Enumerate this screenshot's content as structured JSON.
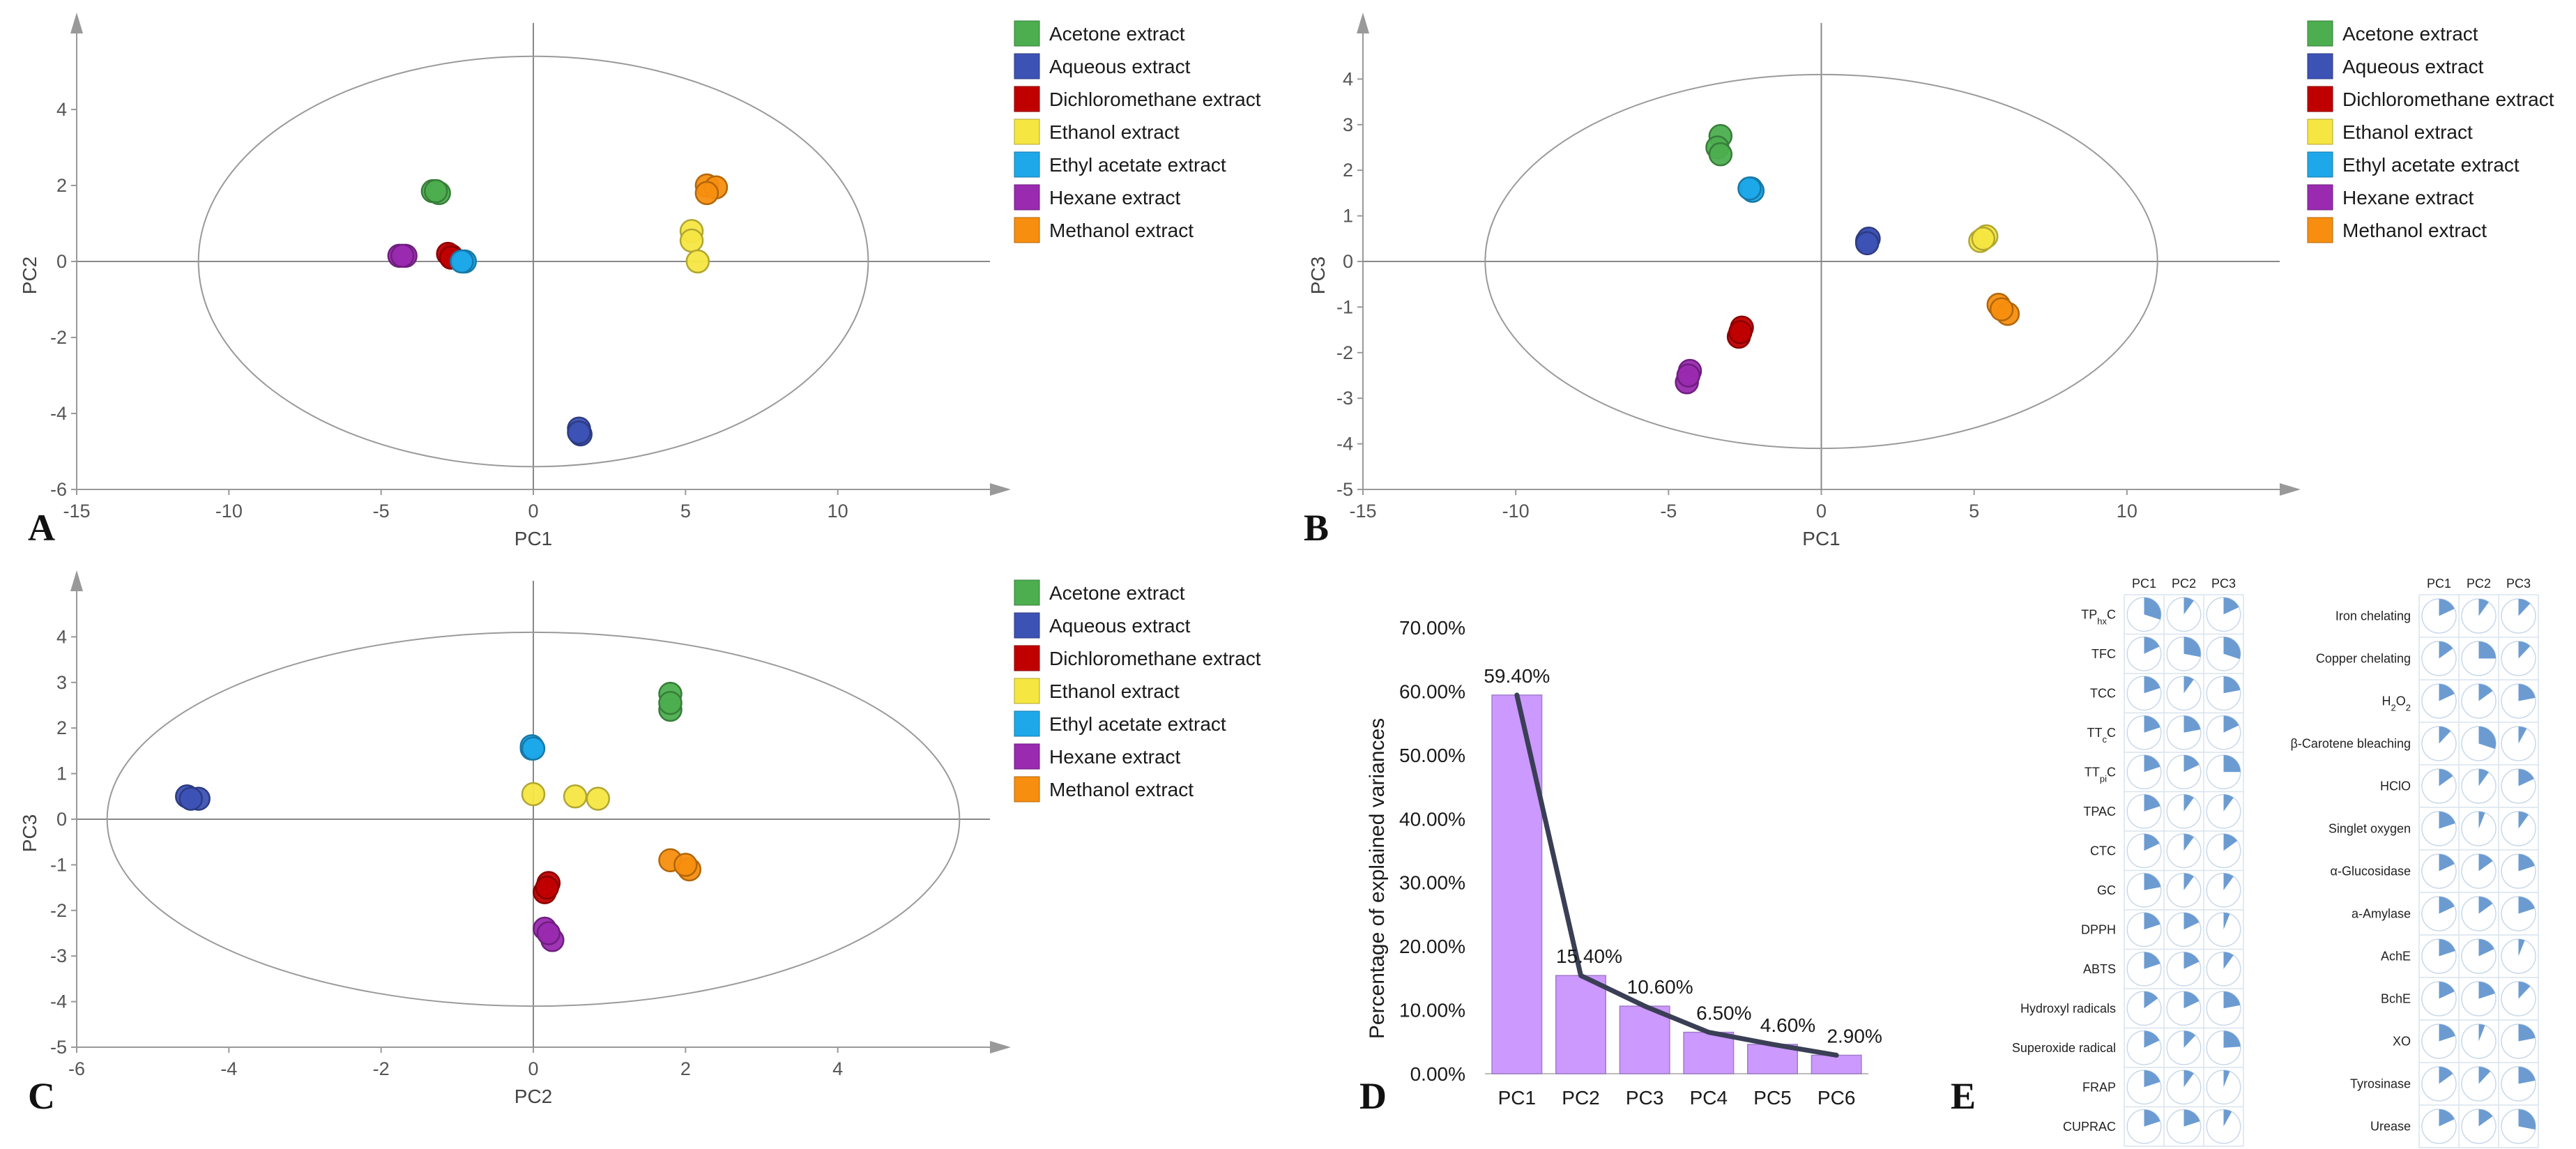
{
  "groups": [
    {
      "name": "Acetone extract",
      "color": "#4cae4f"
    },
    {
      "name": "Aqueous extract",
      "color": "#3d52b5"
    },
    {
      "name": "Dichloromethane extract",
      "color": "#c00000"
    },
    {
      "name": "Ethanol extract",
      "color": "#f5e642"
    },
    {
      "name": "Ethyl acetate extract",
      "color": "#1ea8ea"
    },
    {
      "name": "Hexane extract",
      "color": "#9a2ab0"
    },
    {
      "name": "Methanol extract",
      "color": "#f78e0f"
    }
  ],
  "chart_data": [
    {
      "panel": "A",
      "type": "scatter",
      "xlabel": "PC1",
      "ylabel": "PC2",
      "xlim": [
        -15,
        15
      ],
      "ylim": [
        -6,
        6
      ],
      "xticks": [
        -15,
        -10,
        -5,
        0,
        5,
        10
      ],
      "yticks": [
        -6,
        -4,
        -2,
        0,
        2,
        4
      ],
      "ellipse": {
        "rx": 11,
        "ry": 5.4
      },
      "points": [
        {
          "g": 0,
          "x": -3.3,
          "y": 1.85
        },
        {
          "g": 0,
          "x": -3.1,
          "y": 1.8
        },
        {
          "g": 0,
          "x": -3.2,
          "y": 1.85
        },
        {
          "g": 1,
          "x": 1.5,
          "y": -4.4
        },
        {
          "g": 1,
          "x": 1.55,
          "y": -4.55
        },
        {
          "g": 1,
          "x": 1.5,
          "y": -4.5
        },
        {
          "g": 2,
          "x": -2.7,
          "y": 0.15
        },
        {
          "g": 2,
          "x": -2.8,
          "y": 0.2
        },
        {
          "g": 2,
          "x": -2.7,
          "y": 0.1
        },
        {
          "g": 3,
          "x": 5.2,
          "y": 0.8
        },
        {
          "g": 3,
          "x": 5.2,
          "y": 0.55
        },
        {
          "g": 3,
          "x": 5.4,
          "y": 0.0
        },
        {
          "g": 4,
          "x": -2.3,
          "y": 0.0
        },
        {
          "g": 4,
          "x": -2.25,
          "y": 0.0
        },
        {
          "g": 4,
          "x": -2.35,
          "y": 0.0
        },
        {
          "g": 5,
          "x": -4.4,
          "y": 0.15
        },
        {
          "g": 5,
          "x": -4.2,
          "y": 0.15
        },
        {
          "g": 5,
          "x": -4.3,
          "y": 0.15
        },
        {
          "g": 6,
          "x": 5.7,
          "y": 2.0
        },
        {
          "g": 6,
          "x": 6.0,
          "y": 1.95
        },
        {
          "g": 6,
          "x": 5.7,
          "y": 1.8
        }
      ]
    },
    {
      "panel": "B",
      "type": "scatter",
      "xlabel": "PC1",
      "ylabel": "PC3",
      "xlim": [
        -15,
        15
      ],
      "ylim": [
        -5,
        5
      ],
      "xticks": [
        -15,
        -10,
        -5,
        0,
        5,
        10
      ],
      "yticks": [
        -5,
        -4,
        -3,
        -2,
        -1,
        0,
        1,
        2,
        3,
        4
      ],
      "ellipse": {
        "rx": 11,
        "ry": 4.1
      },
      "points": [
        {
          "g": 0,
          "x": -3.3,
          "y": 2.75
        },
        {
          "g": 0,
          "x": -3.4,
          "y": 2.5
        },
        {
          "g": 0,
          "x": -3.3,
          "y": 2.35
        },
        {
          "g": 1,
          "x": 1.5,
          "y": 0.45
        },
        {
          "g": 1,
          "x": 1.55,
          "y": 0.5
        },
        {
          "g": 1,
          "x": 1.5,
          "y": 0.4
        },
        {
          "g": 2,
          "x": -2.6,
          "y": -1.45
        },
        {
          "g": 2,
          "x": -2.7,
          "y": -1.65
        },
        {
          "g": 2,
          "x": -2.65,
          "y": -1.55
        },
        {
          "g": 3,
          "x": 5.2,
          "y": 0.45
        },
        {
          "g": 3,
          "x": 5.4,
          "y": 0.55
        },
        {
          "g": 3,
          "x": 5.3,
          "y": 0.5
        },
        {
          "g": 4,
          "x": -2.3,
          "y": 1.6
        },
        {
          "g": 4,
          "x": -2.25,
          "y": 1.55
        },
        {
          "g": 4,
          "x": -2.35,
          "y": 1.6
        },
        {
          "g": 5,
          "x": -4.3,
          "y": -2.4
        },
        {
          "g": 5,
          "x": -4.4,
          "y": -2.65
        },
        {
          "g": 5,
          "x": -4.35,
          "y": -2.5
        },
        {
          "g": 6,
          "x": 5.8,
          "y": -0.95
        },
        {
          "g": 6,
          "x": 6.1,
          "y": -1.15
        },
        {
          "g": 6,
          "x": 5.9,
          "y": -1.05
        }
      ]
    },
    {
      "panel": "C",
      "type": "scatter",
      "xlabel": "PC2",
      "ylabel": "PC3",
      "xlim": [
        -6,
        6
      ],
      "ylim": [
        -5,
        5
      ],
      "xticks": [
        -6,
        -4,
        -2,
        0,
        2,
        4
      ],
      "yticks": [
        -5,
        -4,
        -3,
        -2,
        -1,
        0,
        1,
        2,
        3,
        4
      ],
      "ellipse": {
        "rx": 5.6,
        "ry": 4.1
      },
      "points": [
        {
          "g": 0,
          "x": 1.8,
          "y": 2.75
        },
        {
          "g": 0,
          "x": 1.8,
          "y": 2.4
        },
        {
          "g": 0,
          "x": 1.8,
          "y": 2.55
        },
        {
          "g": 1,
          "x": -4.55,
          "y": 0.5
        },
        {
          "g": 1,
          "x": -4.4,
          "y": 0.45
        },
        {
          "g": 1,
          "x": -4.5,
          "y": 0.45
        },
        {
          "g": 2,
          "x": 0.2,
          "y": -1.4
        },
        {
          "g": 2,
          "x": 0.15,
          "y": -1.6
        },
        {
          "g": 2,
          "x": 0.18,
          "y": -1.5
        },
        {
          "g": 3,
          "x": 0.0,
          "y": 0.55
        },
        {
          "g": 3,
          "x": 0.55,
          "y": 0.5
        },
        {
          "g": 3,
          "x": 0.85,
          "y": 0.45
        },
        {
          "g": 4,
          "x": -0.02,
          "y": 1.55
        },
        {
          "g": 4,
          "x": -0.02,
          "y": 1.6
        },
        {
          "g": 4,
          "x": 0.0,
          "y": 1.55
        },
        {
          "g": 5,
          "x": 0.15,
          "y": -2.4
        },
        {
          "g": 5,
          "x": 0.25,
          "y": -2.65
        },
        {
          "g": 5,
          "x": 0.2,
          "y": -2.5
        },
        {
          "g": 6,
          "x": 1.8,
          "y": -0.9
        },
        {
          "g": 6,
          "x": 2.05,
          "y": -1.1
        },
        {
          "g": 6,
          "x": 2.0,
          "y": -1.0
        }
      ]
    },
    {
      "panel": "D",
      "type": "bar",
      "ylabel": "Percentage of explained variances",
      "categories": [
        "PC1",
        "PC2",
        "PC3",
        "PC4",
        "PC5",
        "PC6"
      ],
      "values": [
        59.4,
        15.4,
        10.6,
        6.5,
        4.6,
        2.9
      ],
      "labels": [
        "59.40%",
        "15.40%",
        "10.60%",
        "6.50%",
        "4.60%",
        "2.90%"
      ],
      "ylim": [
        0,
        70
      ],
      "yticks": [
        "0.00%",
        "10.00%",
        "20.00%",
        "30.00%",
        "40.00%",
        "50.00%",
        "60.00%",
        "70.00%"
      ],
      "bar_color": "#cc99ff",
      "line_color": "#3a3f55"
    },
    {
      "panel": "E",
      "type": "table",
      "columns": [
        "PC1",
        "PC2",
        "PC3"
      ],
      "left_table": [
        {
          "label": "TP",
          "sub": "hx",
          "tail": "C",
          "v": [
            0.3,
            0.1,
            0.18
          ]
        },
        {
          "label": "TFC",
          "v": [
            0.18,
            0.28,
            0.3
          ]
        },
        {
          "label": "TCC",
          "v": [
            0.2,
            0.1,
            0.22
          ]
        },
        {
          "label": "TT",
          "sub": "c",
          "tail": "C",
          "v": [
            0.2,
            0.22,
            0.18
          ]
        },
        {
          "label": "TT",
          "sub": "pi",
          "tail": "C",
          "v": [
            0.2,
            0.18,
            0.25
          ]
        },
        {
          "label": "TPAC",
          "v": [
            0.2,
            0.1,
            0.1
          ]
        },
        {
          "label": "CTC",
          "v": [
            0.18,
            0.1,
            0.15
          ]
        },
        {
          "label": "GC",
          "v": [
            0.22,
            0.1,
            0.1
          ]
        },
        {
          "label": "DPPH",
          "v": [
            0.2,
            0.18,
            0.06
          ]
        },
        {
          "label": "ABTS",
          "v": [
            0.2,
            0.18,
            0.1
          ]
        },
        {
          "label": "Hydroxyl radicals",
          "v": [
            0.15,
            0.18,
            0.22
          ]
        },
        {
          "label": "Superoxide radical",
          "v": [
            0.18,
            0.12,
            0.24
          ]
        },
        {
          "label": "FRAP",
          "v": [
            0.2,
            0.1,
            0.06
          ]
        },
        {
          "label": "CUPRAC",
          "v": [
            0.2,
            0.2,
            0.08
          ]
        }
      ],
      "right_table": [
        {
          "label": "Iron chelating",
          "v": [
            0.18,
            0.1,
            0.12
          ]
        },
        {
          "label": "Copper chelating",
          "v": [
            0.15,
            0.25,
            0.12
          ]
        },
        {
          "label": "H",
          "sub": "2",
          "tail": "O",
          "sub2": "2",
          "v": [
            0.18,
            0.15,
            0.22
          ]
        },
        {
          "label": "β-Carotene bleaching",
          "v": [
            0.12,
            0.3,
            0.08
          ]
        },
        {
          "label": "HClO",
          "v": [
            0.15,
            0.1,
            0.18
          ]
        },
        {
          "label": "Singlet oxygen",
          "v": [
            0.2,
            0.06,
            0.1
          ]
        },
        {
          "label": "α-Glucosidase",
          "v": [
            0.18,
            0.15,
            0.2
          ]
        },
        {
          "label": "a-Amylase",
          "v": [
            0.18,
            0.15,
            0.2
          ]
        },
        {
          "label": "AchE",
          "v": [
            0.2,
            0.18,
            0.06
          ]
        },
        {
          "label": "BchE",
          "v": [
            0.18,
            0.2,
            0.12
          ]
        },
        {
          "label": "XO",
          "v": [
            0.2,
            0.06,
            0.22
          ]
        },
        {
          "label": "Tyrosinase",
          "v": [
            0.15,
            0.12,
            0.22
          ]
        },
        {
          "label": "Urease",
          "v": [
            0.18,
            0.15,
            0.28
          ]
        }
      ],
      "fill_color": "#6b9bd1"
    }
  ]
}
